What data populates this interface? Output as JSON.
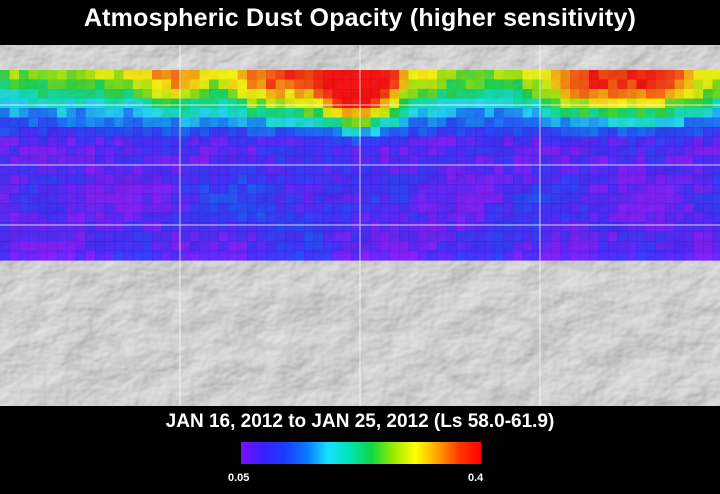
{
  "title": "Atmospheric Dust Opacity (higher sensitivity)",
  "date_range": "JAN 16, 2012 to JAN 25, 2012 (Ls 58.0-61.9)",
  "colorbar": {
    "min_label": "0.05",
    "max_label": "0.4",
    "min_value": 0.05,
    "max_value": 0.4,
    "colors": [
      "#7a10ff",
      "#3a1fff",
      "#1a3cff",
      "#0a78ff",
      "#18e0ff",
      "#00e3b0",
      "#10d640",
      "#9bea00",
      "#ffff00",
      "#ffa300",
      "#ff3800",
      "#ff0000"
    ]
  },
  "map": {
    "basemap": "shaded-relief-mars",
    "overlay": "dust-opacity-grid",
    "grid_lines": true
  }
}
